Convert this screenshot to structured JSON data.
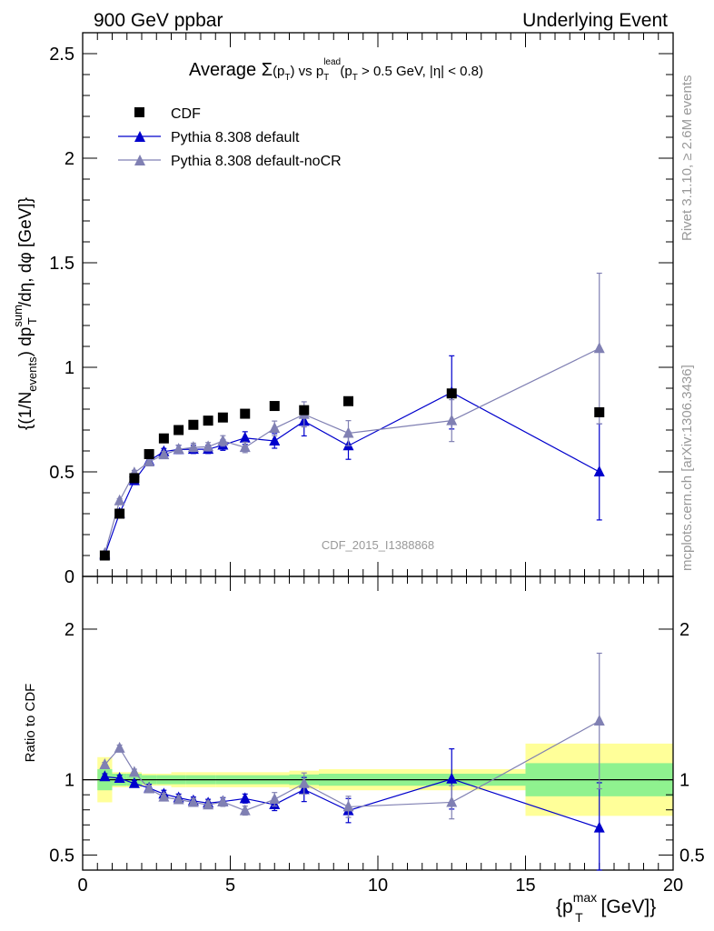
{
  "header": {
    "left": "900 GeV ppbar",
    "right": "Underlying Event"
  },
  "side_labels": {
    "rivet": "Rivet 3.1.10, ≥ 2.6M events",
    "mcplots": "mcplots.cern.ch [arXiv:1306.3436]"
  },
  "watermark": "CDF_2015_I1388868",
  "main_title": {
    "prefix": "Average ",
    "sigma": "Σ",
    "pt": "(p",
    "pt_sub": "T",
    "pt_close": ")",
    "vs": " vs p",
    "lead_sup": "lead",
    "lead_sub": "T",
    "cuts_a": " (p",
    "cuts_sub": "T",
    "cuts_b": " > 0.5 GeV, |η| < 0.8)"
  },
  "legend": [
    {
      "label": "CDF",
      "marker": "square",
      "color": "#000000"
    },
    {
      "label": "Pythia 8.308 default",
      "marker": "triangle",
      "color": "#0000cc"
    },
    {
      "label": "Pythia 8.308 default-noCR",
      "marker": "triangle",
      "color": "#8080b3"
    }
  ],
  "y_label_main": "{(1/N_events) dp_T^sum/dη, dφ [GeV]}",
  "y_label_main_parts": {
    "a": "{(1/N",
    "a_sub": "events",
    "b": ") dp",
    "b_sup": "sum",
    "b_sub": "T",
    "c": "/dη, dφ [GeV]}"
  },
  "y_label_ratio": "Ratio to CDF",
  "x_label_parts": {
    "a": "{p",
    "sup": "max",
    "sub": "T",
    "b": " [GeV]}"
  },
  "chart_data": {
    "type": "scatter",
    "x_range": [
      0,
      20
    ],
    "x_ticks": [
      "0",
      "5",
      "10",
      "15",
      "20"
    ],
    "main": {
      "y_range": [
        0,
        2.6
      ],
      "y_ticks": [
        "0",
        "0.5",
        "1",
        "1.5",
        "2",
        "2.5"
      ]
    },
    "ratio": {
      "y_range": [
        0.4,
        2.35
      ],
      "y_ticks": [
        "0.5",
        "1",
        "2"
      ],
      "reference": 1
    },
    "x": [
      0.75,
      1.25,
      1.75,
      2.25,
      2.75,
      3.25,
      3.75,
      4.25,
      4.75,
      5.5,
      6.5,
      7.5,
      9.0,
      12.5,
      17.5
    ],
    "x_bin_edges": [
      0.5,
      1.0,
      1.5,
      2.0,
      2.5,
      3.0,
      3.5,
      4.0,
      4.5,
      5.0,
      6.0,
      7.0,
      8.0,
      10.0,
      15.0,
      20.0
    ],
    "data": {
      "name": "CDF",
      "y": [
        0.1,
        0.3,
        0.47,
        0.585,
        0.66,
        0.7,
        0.725,
        0.745,
        0.76,
        0.778,
        0.815,
        0.795,
        0.838,
        0.875,
        0.785
      ],
      "band_inner": [
        0.07,
        0.04,
        0.04,
        0.03,
        0.03,
        0.03,
        0.03,
        0.03,
        0.03,
        0.03,
        0.03,
        0.035,
        0.04,
        0.04,
        0.11
      ],
      "band_outer": [
        0.15,
        0.05,
        0.05,
        0.04,
        0.04,
        0.05,
        0.05,
        0.05,
        0.05,
        0.05,
        0.05,
        0.06,
        0.07,
        0.07,
        0.24
      ]
    },
    "series": [
      {
        "name": "Pythia 8.308 default",
        "color": "#0000cc",
        "y": [
          0.103,
          0.302,
          0.458,
          0.553,
          0.597,
          0.607,
          0.608,
          0.608,
          0.628,
          0.662,
          0.648,
          0.742,
          0.625,
          0.88,
          0.5
        ],
        "yerr": [
          0.008,
          0.01,
          0.015,
          0.015,
          0.015,
          0.02,
          0.02,
          0.02,
          0.025,
          0.03,
          0.035,
          0.07,
          0.065,
          0.175,
          0.23
        ],
        "ratio": [
          1.02,
          1.01,
          0.975,
          0.945,
          0.905,
          0.88,
          0.86,
          0.845,
          0.855,
          0.875,
          0.835,
          0.935,
          0.795,
          1.005,
          0.68
        ],
        "ratio_err": [
          0.02,
          0.02,
          0.02,
          0.025,
          0.025,
          0.025,
          0.025,
          0.025,
          0.025,
          0.03,
          0.04,
          0.08,
          0.08,
          0.2,
          0.3
        ]
      },
      {
        "name": "Pythia 8.308 default-noCR",
        "color": "#8080b3",
        "y": [
          0.11,
          0.362,
          0.495,
          0.548,
          0.582,
          0.608,
          0.617,
          0.62,
          0.648,
          0.617,
          0.708,
          0.775,
          0.685,
          0.745,
          1.09
        ],
        "yerr": [
          0.008,
          0.01,
          0.012,
          0.012,
          0.015,
          0.02,
          0.02,
          0.02,
          0.025,
          0.025,
          0.035,
          0.06,
          0.06,
          0.1,
          0.36
        ],
        "ratio": [
          1.1,
          1.21,
          1.05,
          0.94,
          0.885,
          0.868,
          0.85,
          0.833,
          0.853,
          0.795,
          0.87,
          0.975,
          0.82,
          0.85,
          1.39
        ],
        "ratio_err": [
          0.015,
          0.02,
          0.02,
          0.02,
          0.025,
          0.025,
          0.025,
          0.025,
          0.03,
          0.03,
          0.045,
          0.07,
          0.07,
          0.11,
          0.45
        ]
      }
    ]
  },
  "colors": {
    "band_inner": "#8ff28f",
    "band_outer": "#ffff99",
    "axis": "#000000"
  }
}
